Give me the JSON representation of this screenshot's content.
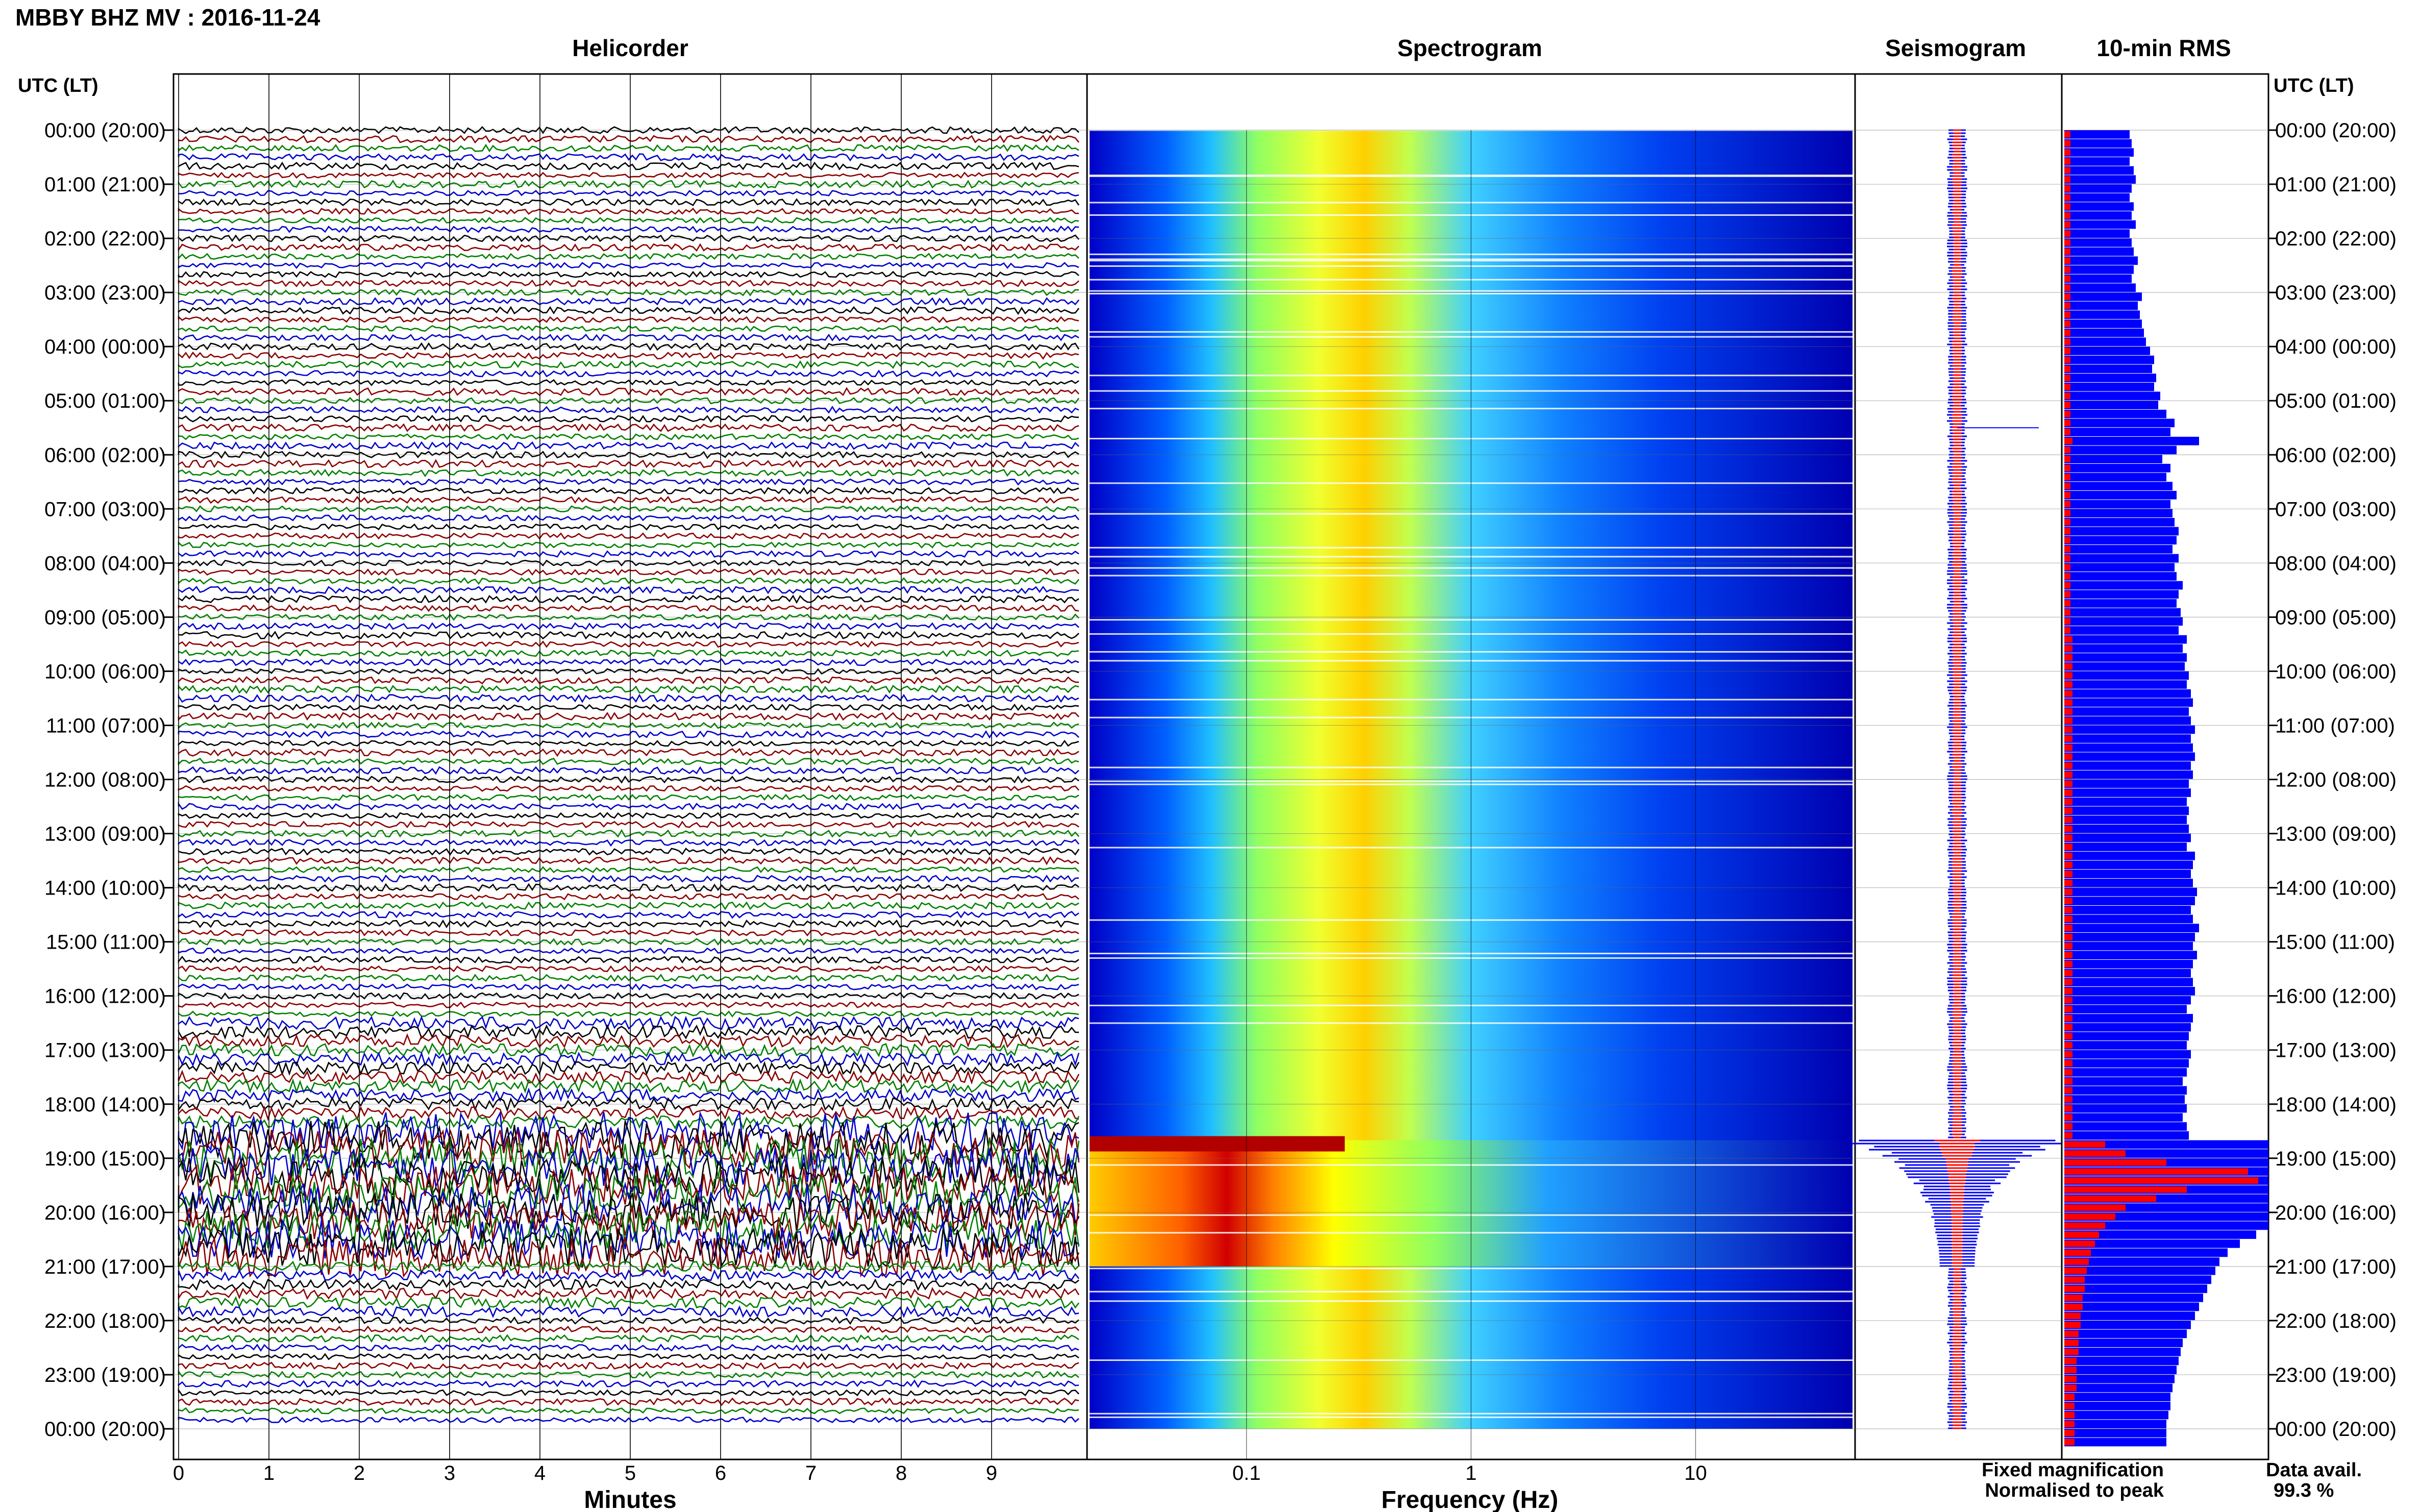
{
  "header": {
    "title": "MBBY BHZ MV : 2016-11-24"
  },
  "panels": {
    "helicorder": "Helicorder",
    "spectrogram": "Spectrogram",
    "seismogram": "Seismogram",
    "rms": "10-min RMS"
  },
  "axis_titles": {
    "left": "UTC (LT)",
    "right": "UTC (LT)",
    "helicorder_x": "Minutes",
    "spectrogram_x": "Frequency (Hz)"
  },
  "legend": {
    "fixed": "Fixed magnification",
    "normalised": "Normalised to peak",
    "fixed_color": "#0000ff",
    "normalised_color": "#ff0000"
  },
  "availability": {
    "label": "Data avail.",
    "value": "99.3 %"
  },
  "chart_data": {
    "type": "heatmap",
    "time_labels": [
      "00:00 (20:00)",
      "01:00 (21:00)",
      "02:00 (22:00)",
      "03:00 (23:00)",
      "04:00 (00:00)",
      "05:00 (01:00)",
      "06:00 (02:00)",
      "07:00 (03:00)",
      "08:00 (04:00)",
      "09:00 (05:00)",
      "10:00 (06:00)",
      "11:00 (07:00)",
      "12:00 (08:00)",
      "13:00 (09:00)",
      "14:00 (10:00)",
      "15:00 (11:00)",
      "16:00 (12:00)",
      "17:00 (13:00)",
      "18:00 (14:00)",
      "19:00 (15:00)",
      "20:00 (16:00)",
      "21:00 (17:00)",
      "22:00 (18:00)",
      "23:00 (19:00)",
      "00:00 (20:00)"
    ],
    "helicorder_minutes_ticks": [
      "0",
      "1",
      "2",
      "3",
      "4",
      "5",
      "6",
      "7",
      "8",
      "9"
    ],
    "helicorder_trace_colors": [
      "#000000",
      "#8b0000",
      "#008000",
      "#0000cd"
    ],
    "frequency_ticks": [
      {
        "value": 0.1,
        "label": "0.1"
      },
      {
        "value": 1,
        "label": "1"
      },
      {
        "value": 10,
        "label": "10"
      }
    ],
    "frequency_range_hz": [
      0.02,
      50
    ],
    "spectrogram_colors": [
      "#00008b",
      "#0000ff",
      "#0080ff",
      "#00ffff",
      "#80ff80",
      "#ffff00",
      "#ff8000",
      "#ff0000",
      "#8b0000"
    ],
    "high_amplitude_period_utc": [
      "18:40",
      "21:00"
    ],
    "rms_10min_fixed": [
      0.32,
      0.33,
      0.34,
      0.32,
      0.34,
      0.35,
      0.33,
      0.32,
      0.34,
      0.33,
      0.35,
      0.32,
      0.33,
      0.34,
      0.36,
      0.34,
      0.33,
      0.35,
      0.38,
      0.36,
      0.37,
      0.38,
      0.39,
      0.4,
      0.42,
      0.44,
      0.43,
      0.45,
      0.44,
      0.47,
      0.46,
      0.5,
      0.54,
      0.52,
      0.66,
      0.55,
      0.48,
      0.52,
      0.5,
      0.53,
      0.55,
      0.52,
      0.53,
      0.54,
      0.56,
      0.55,
      0.53,
      0.56,
      0.54,
      0.55,
      0.58,
      0.56,
      0.55,
      0.57,
      0.58,
      0.56,
      0.6,
      0.58,
      0.6,
      0.59,
      0.61,
      0.6,
      0.62,
      0.63,
      0.61,
      0.62,
      0.64,
      0.62,
      0.63,
      0.64,
      0.62,
      0.63,
      0.61,
      0.62,
      0.6,
      0.61,
      0.6,
      0.61,
      0.62,
      0.6,
      0.64,
      0.63,
      0.62,
      0.63,
      0.65,
      0.64,
      0.62,
      0.63,
      0.66,
      0.64,
      0.63,
      0.65,
      0.63,
      0.62,
      0.63,
      0.64,
      0.62,
      0.6,
      0.63,
      0.62,
      0.61,
      0.6,
      0.62,
      0.61,
      0.6,
      0.58,
      0.6,
      0.59,
      0.6,
      0.58,
      0.6,
      0.61,
      1.0,
      1.0,
      1.0,
      1.0,
      1.0,
      1.0,
      1.0,
      1.0,
      1.0,
      1.0,
      0.94,
      0.86,
      0.8,
      0.76,
      0.74,
      0.72,
      0.7,
      0.68,
      0.66,
      0.64,
      0.62,
      0.6,
      0.58,
      0.57,
      0.56,
      0.55,
      0.54,
      0.53,
      0.52,
      0.52,
      0.51,
      0.5,
      0.5,
      0.5
    ],
    "rms_10min_normalised": [
      0.03,
      0.03,
      0.03,
      0.03,
      0.03,
      0.03,
      0.03,
      0.03,
      0.03,
      0.03,
      0.03,
      0.03,
      0.03,
      0.03,
      0.03,
      0.03,
      0.03,
      0.03,
      0.03,
      0.03,
      0.03,
      0.03,
      0.03,
      0.03,
      0.03,
      0.03,
      0.03,
      0.03,
      0.03,
      0.03,
      0.03,
      0.03,
      0.03,
      0.03,
      0.04,
      0.03,
      0.03,
      0.03,
      0.03,
      0.03,
      0.03,
      0.03,
      0.03,
      0.03,
      0.03,
      0.03,
      0.03,
      0.03,
      0.03,
      0.03,
      0.03,
      0.03,
      0.03,
      0.03,
      0.03,
      0.03,
      0.04,
      0.04,
      0.04,
      0.04,
      0.04,
      0.04,
      0.04,
      0.04,
      0.04,
      0.04,
      0.04,
      0.04,
      0.04,
      0.04,
      0.04,
      0.04,
      0.04,
      0.04,
      0.04,
      0.04,
      0.04,
      0.04,
      0.04,
      0.04,
      0.04,
      0.04,
      0.04,
      0.04,
      0.04,
      0.04,
      0.04,
      0.04,
      0.04,
      0.04,
      0.04,
      0.04,
      0.04,
      0.04,
      0.04,
      0.04,
      0.04,
      0.04,
      0.04,
      0.04,
      0.04,
      0.04,
      0.04,
      0.04,
      0.04,
      0.04,
      0.04,
      0.04,
      0.04,
      0.04,
      0.04,
      0.04,
      0.2,
      0.3,
      0.5,
      0.9,
      0.95,
      0.6,
      0.45,
      0.3,
      0.25,
      0.2,
      0.17,
      0.15,
      0.13,
      0.12,
      0.11,
      0.1,
      0.1,
      0.09,
      0.09,
      0.08,
      0.08,
      0.07,
      0.07,
      0.07,
      0.06,
      0.06,
      0.06,
      0.06,
      0.05,
      0.05,
      0.05,
      0.05,
      0.05,
      0.05
    ]
  }
}
